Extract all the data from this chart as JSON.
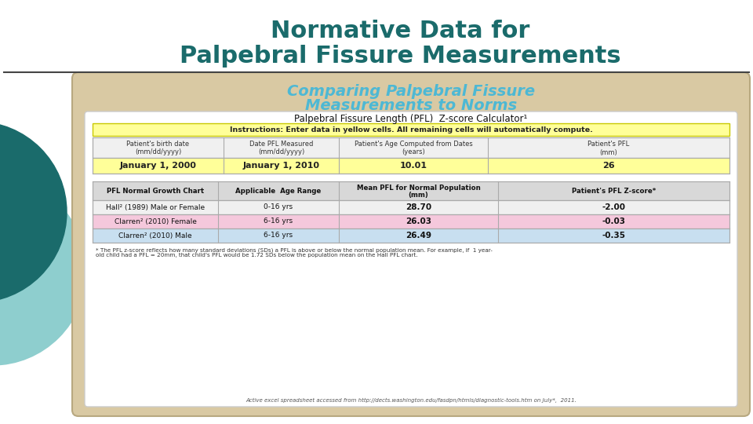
{
  "title_line1": "Normative Data for",
  "title_line2": "Palpebral Fissure Measurements",
  "title_color": "#1a6b6b",
  "bg_color": "#ffffff",
  "card_bg": "#d9c9a3",
  "card_title_line1": "Comparing Palpebral Fissure",
  "card_title_line2": "Measurements to Norms",
  "card_title_color": "#4db8d4",
  "table1_title": "Palpebral Fissure Length (PFL)  Z-score Calculator¹",
  "instruction_text": "Instructions: Enter data in yellow cells. All remaining cells will automatically compute.",
  "instruction_bg": "#ffff99",
  "instruction_border": "#c8c800",
  "header1_col1": "Patient's birth date\n(mm/dd/yyyy)",
  "header1_col2": "Date PFL Measured\n(mm/dd/yyyy)",
  "header1_col3": "Patient's Age Computed from Dates\n(years)",
  "header1_col4": "Patient's PFL\n(mm)",
  "data1_col1": "January 1, 2000",
  "data1_col2": "January 1, 2010",
  "data1_col3": "10.01",
  "data1_col4": "26",
  "data1_bg": "#ffff99",
  "header2_col1": "PFL Normal Growth Chart",
  "header2_col2": "Applicable  Age Range",
  "header2_col3": "Mean PFL for Normal Population\n(mm)",
  "header2_col4": "Patient's PFL Z-score*",
  "row2_1": [
    "Hall² (1989) Male or Female",
    "0-16 yrs",
    "28.70",
    "-2.00"
  ],
  "row2_2": [
    "Clarren² (2010) Female",
    "6-16 yrs",
    "26.03",
    "-0.03"
  ],
  "row2_3": [
    "Clarren² (2010) Male",
    "6-16 yrs",
    "26.49",
    "-0.35"
  ],
  "row2_bg1": "#f0f0f0",
  "row2_bg2": "#f5c8dc",
  "row2_bg3": "#c8dff0",
  "footnote1": "* The PFL z-score reflects how many standard deviations (SDs) a PFL is above or below the normal population mean. For example, if  1 year-",
  "footnote2": "old child had a PFL = 20mm, that child's PFL would be 1.72 SDs below the population mean on the Hall PFL chart.",
  "source_text": "Active excel spreadsheet accessed from http://dects.washington.edu/fasdpn/htmls/diagnostic-tools.htm on July*,  2011.",
  "circle_color1": "#1a6b6b",
  "circle_color2": "#8ecece",
  "rule_color": "#444444"
}
